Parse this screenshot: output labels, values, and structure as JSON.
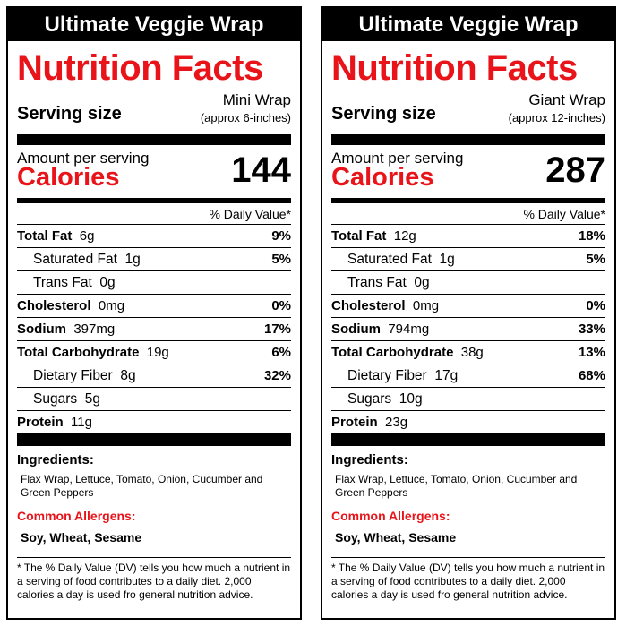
{
  "labels": [
    {
      "title": "Ultimate Veggie Wrap",
      "heading": "Nutrition Facts",
      "serving_label": "Serving size",
      "serving_size": "Mini Wrap",
      "serving_note": "(approx 6-inches)",
      "amount_label": "Amount per serving",
      "calories_label": "Calories",
      "calories": "144",
      "dv_header": "% Daily Value*",
      "rows": [
        {
          "label": "Total Fat",
          "amount": "6g",
          "pct": "9%"
        },
        {
          "label": "Saturated Fat",
          "amount": "1g",
          "pct": "5%"
        },
        {
          "label": "Trans Fat",
          "amount": "0g",
          "pct": ""
        },
        {
          "label": "Cholesterol",
          "amount": "0mg",
          "pct": "0%"
        },
        {
          "label": "Sodium",
          "amount": "397mg",
          "pct": "17%"
        },
        {
          "label": "Total Carbohydrate",
          "amount": "19g",
          "pct": "6%"
        },
        {
          "label": "Dietary Fiber",
          "amount": "8g",
          "pct": "32%"
        },
        {
          "label": "Sugars",
          "amount": "5g",
          "pct": ""
        },
        {
          "label": "Protein",
          "amount": "11g",
          "pct": ""
        }
      ],
      "ingredients_label": "Ingredients:",
      "ingredients": "Flax Wrap,  Lettuce, Tomato, Onion, Cucumber and Green Peppers",
      "allergens_label": "Common Allergens:",
      "allergens": "Soy, Wheat, Sesame",
      "footnote": "* The % Daily Value (DV) tells you how much a nutrient in a serving of food contributes to a daily diet.  2,000 calories a day is used fro general nutrition advice."
    },
    {
      "title": "Ultimate Veggie Wrap",
      "heading": "Nutrition Facts",
      "serving_label": "Serving size",
      "serving_size": "Giant Wrap",
      "serving_note": "(approx 12-inches)",
      "amount_label": "Amount per serving",
      "calories_label": "Calories",
      "calories": "287",
      "dv_header": "% Daily Value*",
      "rows": [
        {
          "label": "Total Fat",
          "amount": "12g",
          "pct": "18%"
        },
        {
          "label": "Saturated Fat",
          "amount": "1g",
          "pct": "5%"
        },
        {
          "label": "Trans Fat",
          "amount": "0g",
          "pct": ""
        },
        {
          "label": "Cholesterol",
          "amount": "0mg",
          "pct": "0%"
        },
        {
          "label": "Sodium",
          "amount": "794mg",
          "pct": "33%"
        },
        {
          "label": "Total Carbohydrate",
          "amount": "38g",
          "pct": "13%"
        },
        {
          "label": "Dietary Fiber",
          "amount": "17g",
          "pct": "68%"
        },
        {
          "label": "Sugars",
          "amount": "10g",
          "pct": ""
        },
        {
          "label": "Protein",
          "amount": "23g",
          "pct": ""
        }
      ],
      "ingredients_label": "Ingredients:",
      "ingredients": "Flax Wrap, Lettuce, Tomato, Onion, Cucumber and Green Peppers",
      "allergens_label": "Common Allergens:",
      "allergens": "Soy, Wheat, Sesame",
      "footnote": "* The % Daily Value (DV) tells you how much a nutrient in a serving of food contributes to a daily diet.  2,000 calories a day is used fro general nutrition advice."
    }
  ],
  "colors": {
    "accent": "#e8141a",
    "ink": "#000000"
  }
}
